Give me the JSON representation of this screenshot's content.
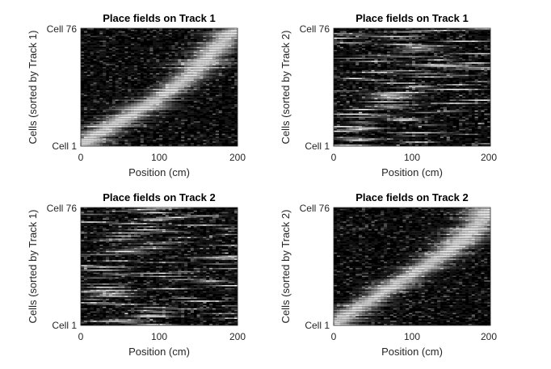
{
  "figure": {
    "background": "#ffffff",
    "colormap": "gray"
  },
  "chart_data": [
    {
      "type": "heatmap",
      "title": "Place fields on Track 1",
      "xlabel": "Position (cm)",
      "ylabel": "Cells (sorted by Track 1)",
      "xlim": [
        0,
        200
      ],
      "xticks": [
        "0",
        "100",
        "200"
      ],
      "ylim": [
        1,
        76
      ],
      "yticks": [
        "Cell 1",
        "Cell 76"
      ],
      "n_cells": 76,
      "grid": false,
      "pattern": "diagonal",
      "curve": [
        [
          0,
          0.0
        ],
        [
          20,
          0.09
        ],
        [
          50,
          0.21
        ],
        [
          80,
          0.32
        ],
        [
          110,
          0.45
        ],
        [
          140,
          0.6
        ],
        [
          165,
          0.78
        ],
        [
          185,
          0.92
        ],
        [
          200,
          1.0
        ]
      ]
    },
    {
      "type": "heatmap",
      "title": "Place fields on Track 1",
      "xlabel": "Position (cm)",
      "ylabel": "Cells (sorted by Track 2)",
      "xlim": [
        0,
        200
      ],
      "xticks": [
        "0",
        "100",
        "200"
      ],
      "ylim": [
        1,
        76
      ],
      "yticks": [
        "Cell 1",
        "Cell 76"
      ],
      "n_cells": 76,
      "grid": false,
      "pattern": "scattered"
    },
    {
      "type": "heatmap",
      "title": "Place fields on Track 2",
      "xlabel": "Position (cm)",
      "ylabel": "Cells (sorted by Track 1)",
      "xlim": [
        0,
        200
      ],
      "xticks": [
        "0",
        "100",
        "200"
      ],
      "ylim": [
        1,
        76
      ],
      "yticks": [
        "Cell 1",
        "Cell 76"
      ],
      "n_cells": 76,
      "grid": false,
      "pattern": "scattered"
    },
    {
      "type": "heatmap",
      "title": "Place fields on Track 2",
      "xlabel": "Position (cm)",
      "ylabel": "Cells (sorted by Track 2)",
      "xlim": [
        0,
        200
      ],
      "xticks": [
        "0",
        "100",
        "200"
      ],
      "ylim": [
        1,
        76
      ],
      "yticks": [
        "Cell 1",
        "Cell 76"
      ],
      "n_cells": 76,
      "grid": false,
      "pattern": "diagonal",
      "curve": [
        [
          0,
          0.0
        ],
        [
          20,
          0.1
        ],
        [
          50,
          0.22
        ],
        [
          80,
          0.35
        ],
        [
          110,
          0.47
        ],
        [
          140,
          0.6
        ],
        [
          165,
          0.73
        ],
        [
          185,
          0.87
        ],
        [
          200,
          1.0
        ]
      ]
    }
  ]
}
